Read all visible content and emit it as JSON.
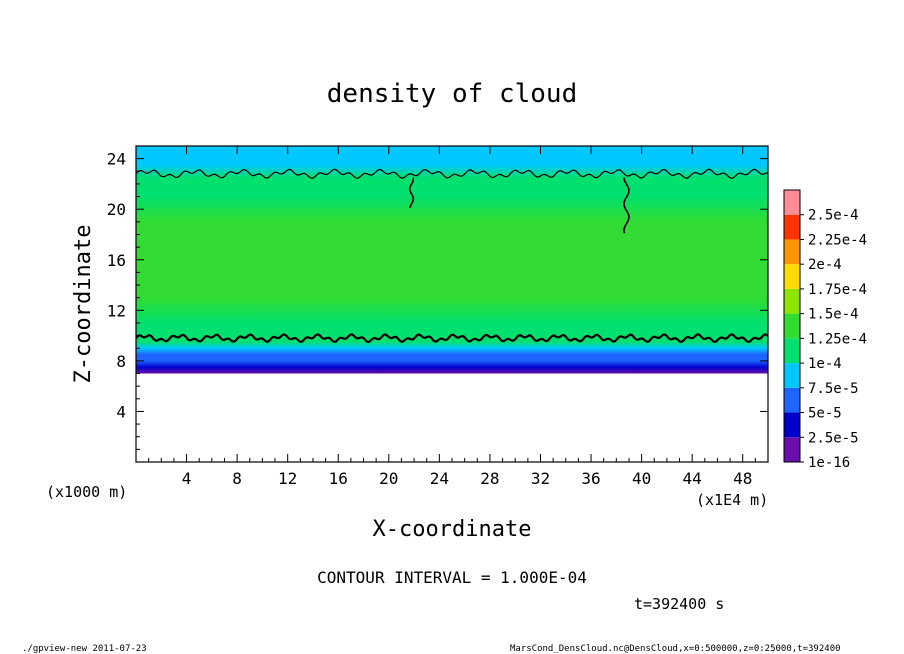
{
  "chart_data": {
    "type": "heatmap",
    "title": "density of cloud",
    "xlabel": "X-coordinate",
    "ylabel": "Z-coordinate",
    "x_unit_label": "(x1E4 m)",
    "y_unit_label": "(x1000 m)",
    "xlim": [
      0,
      50
    ],
    "ylim": [
      0,
      25
    ],
    "x_ticks": [
      "4",
      "8",
      "12",
      "16",
      "20",
      "24",
      "28",
      "32",
      "36",
      "40",
      "44",
      "48"
    ],
    "x_tick_values": [
      4,
      8,
      12,
      16,
      20,
      24,
      28,
      32,
      36,
      40,
      44,
      48
    ],
    "y_ticks": [
      "4",
      "8",
      "12",
      "16",
      "20",
      "24"
    ],
    "y_tick_values": [
      4,
      8,
      12,
      16,
      20,
      24
    ],
    "colorbar_labels": [
      "1e-16",
      "2.5e-5",
      "5e-5",
      "7.5e-5",
      "1e-4",
      "1.25e-4",
      "1.5e-4",
      "1.75e-4",
      "2e-4",
      "2.25e-4",
      "2.5e-4"
    ],
    "colorbar_colors": [
      "#6a0dad",
      "#0000cd",
      "#1e64ff",
      "#00c8ff",
      "#00e06e",
      "#32dc32",
      "#8ce600",
      "#ffdc00",
      "#ff9600",
      "#ff3200",
      "#ff8c96"
    ],
    "profile_z": [
      7,
      7.5,
      8,
      8.5,
      9,
      9.5,
      10,
      11,
      13,
      16,
      19,
      21,
      22.5,
      23.5,
      25
    ],
    "profile_density": [
      5e-06,
      2.5e-05,
      5e-05,
      7e-05,
      9e-05,
      0.000105,
      0.000115,
      0.00012,
      0.000125,
      0.000128,
      0.000125,
      0.00012,
      0.000105,
      9e-05,
      8.5e-05
    ],
    "contour_interval_text": "CONTOUR INTERVAL = 1.000E-04",
    "time_text": "t=392400 s"
  },
  "footer": {
    "left": "./gpview-new  2011-07-23",
    "right": "MarsCond_DensCloud.nc@DensCloud,x=0:500000,z=0:25000,t=392400"
  }
}
